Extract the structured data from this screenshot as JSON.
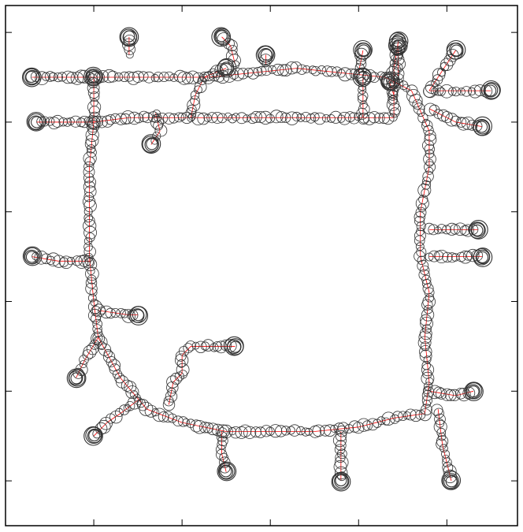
{
  "colors": {
    "pose_marker": "#333333",
    "trajectory_edge": "#ff0000",
    "frame": "#000000",
    "background": "#ffffff"
  },
  "chart_data": {
    "type": "scatter",
    "title": "",
    "xlabel": "",
    "ylabel": "",
    "xlim": [
      0,
      58
    ],
    "ylim": [
      0,
      58
    ],
    "xticks": [
      10,
      20,
      30,
      40,
      50
    ],
    "yticks": [
      3,
      13,
      23,
      33,
      43,
      53
    ],
    "tick_labels_shown": false,
    "grid": false,
    "legend": "none",
    "series": [
      {
        "marker": "circle",
        "connected_by": "trajectory_edge",
        "paths": [
          {
            "points": [
              [
                10,
                8
              ],
              [
                10,
                13
              ],
              [
                9.5,
                18
              ],
              [
                9.5,
                23
              ],
              [
                9.5,
                28
              ],
              [
                10,
                33
              ],
              [
                10.5,
                37
              ],
              [
                13,
                41.5
              ],
              [
                16,
                45
              ],
              [
                20,
                46.5
              ],
              [
                25,
                47.5
              ],
              [
                30,
                47.5
              ],
              [
                35,
                47.5
              ],
              [
                40,
                47
              ],
              [
                44,
                46
              ],
              [
                47.5,
                45.5
              ],
              [
                48,
                42
              ],
              [
                47.5,
                37
              ],
              [
                48,
                32
              ],
              [
                47,
                28
              ],
              [
                47,
                23
              ],
              [
                48,
                18
              ],
              [
                48,
                14
              ],
              [
                46,
                9.5
              ],
              [
                43,
                8
              ],
              [
                38,
                7.5
              ],
              [
                33,
                7
              ],
              [
                28,
                7.5
              ],
              [
                23,
                8
              ],
              [
                18,
                8
              ],
              [
                14,
                8
              ],
              [
                10,
                8
              ]
            ]
          },
          {
            "points": [
              [
                10,
                13
              ],
              [
                14,
                12.5
              ],
              [
                19,
                12.5
              ],
              [
                24,
                12.5
              ],
              [
                29,
                12.5
              ],
              [
                34,
                12.5
              ],
              [
                38,
                12.5
              ],
              [
                40,
                12.5
              ],
              [
                44,
                12.5
              ],
              [
                44,
                10
              ],
              [
                43.5,
                8.5
              ]
            ]
          },
          {
            "points": [
              [
                10.5,
                37
              ],
              [
                9,
                39.5
              ],
              [
                8,
                41.5
              ]
            ]
          },
          {
            "points": [
              [
                15,
                44
              ],
              [
                13,
                45.5
              ],
              [
                11.5,
                46.5
              ],
              [
                10,
                48
              ]
            ]
          },
          {
            "points": [
              [
                24.5,
                47.5
              ],
              [
                24.5,
                50
              ],
              [
                25,
                52
              ]
            ]
          },
          {
            "points": [
              [
                38,
                47.5
              ],
              [
                38,
                50
              ],
              [
                38,
                53
              ]
            ]
          },
          {
            "points": [
              [
                49,
                45
              ],
              [
                49.5,
                49
              ],
              [
                50.5,
                53
              ]
            ]
          },
          {
            "points": [
              [
                18.5,
                44.5
              ],
              [
                19,
                42
              ],
              [
                20,
                41
              ],
              [
                20,
                39
              ],
              [
                21,
                38
              ],
              [
                24,
                38
              ],
              [
                26,
                38
              ]
            ]
          },
          {
            "points": [
              [
                10.5,
                34
              ],
              [
                14,
                34.5
              ],
              [
                15,
                34.5
              ]
            ]
          },
          {
            "points": [
              [
                9.5,
                28.5
              ],
              [
                6,
                28.5
              ],
              [
                3,
                28
              ]
            ]
          },
          {
            "points": [
              [
                10,
                13
              ],
              [
                6.5,
                13
              ],
              [
                3.5,
                13
              ]
            ]
          },
          {
            "points": [
              [
                10,
                8
              ],
              [
                6.5,
                8
              ],
              [
                3,
                8
              ]
            ]
          },
          {
            "points": [
              [
                14,
                5.5
              ],
              [
                14,
                3.5
              ]
            ]
          },
          {
            "points": [
              [
                26,
                6.5
              ],
              [
                25.5,
                4.5
              ],
              [
                24.5,
                3.5
              ]
            ]
          },
          {
            "points": [
              [
                29.5,
                6.5
              ],
              [
                29.5,
                5.5
              ]
            ]
          },
          {
            "points": [
              [
                40,
                7.5
              ],
              [
                40.5,
                5
              ]
            ]
          },
          {
            "points": [
              [
                44.5,
                8
              ],
              [
                44.5,
                4.5
              ]
            ]
          },
          {
            "points": [
              [
                48,
                9.5
              ],
              [
                50,
                6.5
              ],
              [
                51,
                5
              ]
            ]
          },
          {
            "points": [
              [
                48,
                11.5
              ],
              [
                51,
                13
              ],
              [
                54,
                13.5
              ]
            ]
          },
          {
            "points": [
              [
                48,
                9.5
              ],
              [
                51,
                9.5
              ],
              [
                55,
                9.5
              ]
            ]
          },
          {
            "points": [
              [
                48,
                28
              ],
              [
                51,
                28
              ],
              [
                54,
                28
              ]
            ]
          },
          {
            "points": [
              [
                48,
                25
              ],
              [
                51,
                25
              ],
              [
                53.5,
                25
              ]
            ]
          },
          {
            "points": [
              [
                48,
                43
              ],
              [
                51,
                43.5
              ],
              [
                53,
                43
              ]
            ]
          },
          {
            "points": [
              [
                17,
                12
              ],
              [
                17.5,
                14
              ],
              [
                16.5,
                15.5
              ]
            ]
          },
          {
            "points": [
              [
                21,
                12.5
              ],
              [
                21.5,
                10
              ],
              [
                22.5,
                8
              ],
              [
                25,
                7
              ]
            ]
          },
          {
            "points": [
              [
                40.5,
                12.5
              ],
              [
                40.5,
                10
              ],
              [
                40.5,
                8
              ]
            ]
          },
          {
            "points": [
              [
                44,
                10.5
              ],
              [
                44,
                7
              ],
              [
                44.5,
                4
              ]
            ]
          }
        ]
      }
    ]
  }
}
